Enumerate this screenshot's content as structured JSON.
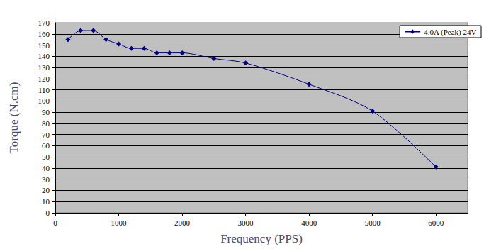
{
  "chart_data": {
    "type": "line",
    "x_label": "Frequency (PPS)",
    "y_label": "Torque (N.cm)",
    "x": [
      200,
      400,
      600,
      800,
      1000,
      1200,
      1400,
      1600,
      1800,
      2000,
      2500,
      3000,
      4000,
      5000,
      6000
    ],
    "series": [
      {
        "name": "4.0A (Peak) 24V",
        "color": "#000080",
        "marker": "diamond",
        "line_style": "solid",
        "values": [
          155,
          163,
          163,
          155,
          151,
          147,
          147,
          143,
          143,
          143,
          138,
          134,
          115,
          91,
          41
        ]
      }
    ],
    "xlim": [
      0,
      6500
    ],
    "xticks": [
      0,
      1000,
      2000,
      3000,
      4000,
      5000,
      6000
    ],
    "ylim": [
      0,
      170
    ],
    "yticks": [
      0,
      10,
      20,
      30,
      40,
      50,
      60,
      70,
      80,
      90,
      100,
      110,
      120,
      130,
      140,
      150,
      160,
      170
    ],
    "grid": true,
    "legend": "upper right"
  }
}
